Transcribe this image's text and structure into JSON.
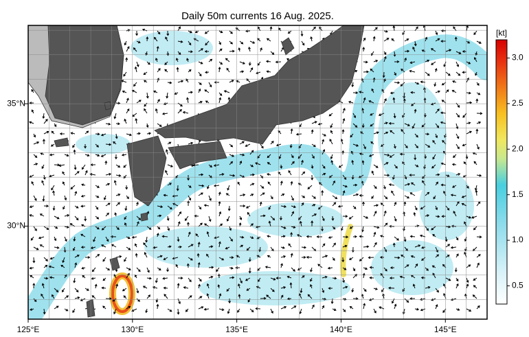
{
  "map": {
    "title": "Daily 50m currents 16 Aug. 2025.",
    "lon_range": [
      125,
      147
    ],
    "lat_range": [
      26.2,
      38.2
    ],
    "lon_ticks": [
      {
        "value": 125,
        "label": "125°E"
      },
      {
        "value": 130,
        "label": "130°E"
      },
      {
        "value": 135,
        "label": "135°E"
      },
      {
        "value": 140,
        "label": "140°E"
      },
      {
        "value": 145,
        "label": "145°E"
      }
    ],
    "lat_ticks": [
      {
        "value": 30,
        "label": "30°N"
      },
      {
        "value": 35,
        "label": "35°N"
      }
    ],
    "colorbar": {
      "unit": "[kt]",
      "range": [
        0.3,
        3.2
      ],
      "ticks": [
        {
          "value": 0.5,
          "label": "0.5"
        },
        {
          "value": 1,
          "label": "1.0"
        },
        {
          "value": 1.5,
          "label": "1.5"
        },
        {
          "value": 2,
          "label": "2.0"
        },
        {
          "value": 2.5,
          "label": "2.5"
        },
        {
          "value": 3,
          "label": "3.0"
        }
      ]
    }
  }
}
